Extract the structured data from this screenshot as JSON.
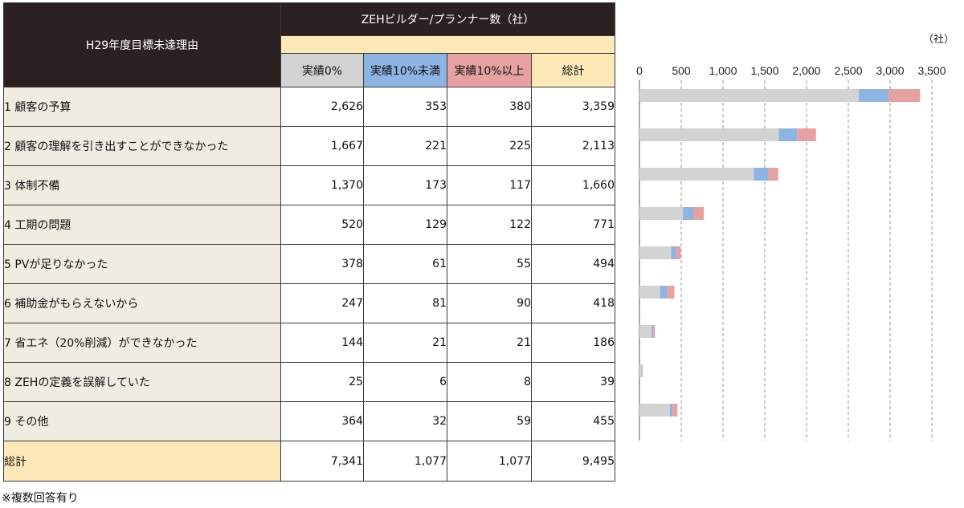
{
  "table": {
    "reason_header": "H29年度目標未達理由",
    "group_header": "ZEHビルダー/プランナー数（社）",
    "col_headers": [
      "実績0%",
      "実績10%未満",
      "実績10%以上",
      "総計"
    ],
    "rows": [
      {
        "label": "1 顧客の予算",
        "v0": "2,626",
        "v1": "353",
        "v2": "380",
        "total": "3,359"
      },
      {
        "label": "2 顧客の理解を引き出すことができなかった",
        "v0": "1,667",
        "v1": "221",
        "v2": "225",
        "total": "2,113"
      },
      {
        "label": "3 体制不備",
        "v0": "1,370",
        "v1": "173",
        "v2": "117",
        "total": "1,660"
      },
      {
        "label": "4 工期の問題",
        "v0": "520",
        "v1": "129",
        "v2": "122",
        "total": "771"
      },
      {
        "label": "5 PVが足りなかった",
        "v0": "378",
        "v1": "61",
        "v2": "55",
        "total": "494"
      },
      {
        "label": "6 補助金がもらえないから",
        "v0": "247",
        "v1": "81",
        "v2": "90",
        "total": "418"
      },
      {
        "label": "7 省エネ（20%削減）ができなかった",
        "v0": "144",
        "v1": "21",
        "v2": "21",
        "total": "186"
      },
      {
        "label": "8 ZEHの定義を誤解していた",
        "v0": "25",
        "v1": "6",
        "v2": "8",
        "total": "39"
      },
      {
        "label": "9 その他",
        "v0": "364",
        "v1": "32",
        "v2": "59",
        "total": "455"
      }
    ],
    "total_row": {
      "label": "総計",
      "v0": "7,341",
      "v1": "1,077",
      "v2": "1,077",
      "total": "9,495"
    }
  },
  "note": "※複数回答有り",
  "chart_data": {
    "type": "bar",
    "orientation": "horizontal",
    "stacked": true,
    "unit_label": "（社）",
    "xlim": [
      0,
      3500
    ],
    "xticks": [
      0,
      500,
      1000,
      1500,
      2000,
      2500,
      3000,
      3500
    ],
    "xtick_labels": [
      "0",
      "500",
      "1,000",
      "1,500",
      "2,000",
      "2,500",
      "3,000",
      "3,500"
    ],
    "grid": "vertical dashed",
    "categories": [
      "1 顧客の予算",
      "2 顧客の理解を引き出すことができなかった",
      "3 体制不備",
      "4 工期の問題",
      "5 PVが足りなかった",
      "6 補助金がもらえないから",
      "7 省エネ（20%削減）ができなかった",
      "8 ZEHの定義を誤解していた",
      "9 その他"
    ],
    "series": [
      {
        "name": "実績0%",
        "color": "#d3d3d3",
        "values": [
          2626,
          1667,
          1370,
          520,
          378,
          247,
          144,
          25,
          364
        ]
      },
      {
        "name": "実績10%未満",
        "color": "#8db4e2",
        "values": [
          353,
          221,
          173,
          129,
          61,
          81,
          21,
          6,
          32
        ]
      },
      {
        "name": "実績10%以上",
        "color": "#e6a1a1",
        "values": [
          380,
          225,
          117,
          122,
          55,
          90,
          21,
          8,
          59
        ]
      }
    ]
  }
}
